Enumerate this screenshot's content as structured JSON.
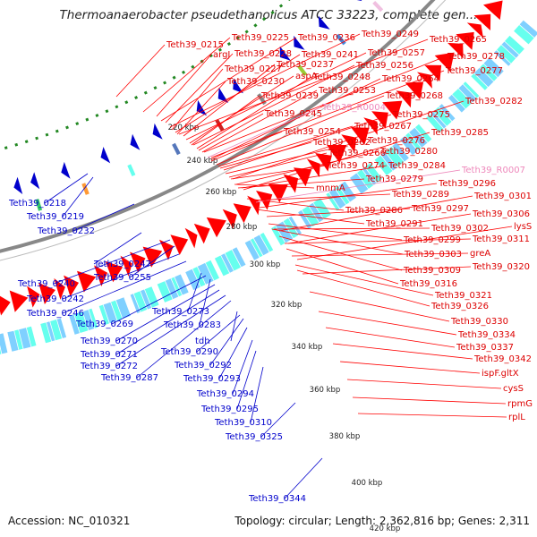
{
  "title": "Thermoanaerobacter pseudethanolicus ATCC 33223, complete gen...",
  "accession": "Accession: NC_010321",
  "summary": "Topology: circular; Length: 2,362,816 bp; Genes: 2,311",
  "colors": {
    "forward": "#ff0000",
    "reverse": "#0000cc",
    "rna": "#ee88bb",
    "tick": "#228822",
    "backbone": "#888888"
  },
  "kbp_ticks": [
    "220 kbp",
    "240 kbp",
    "260 kbp",
    "280 kbp",
    "300 kbp",
    "320 kbp",
    "340 kbp",
    "360 kbp",
    "380 kbp",
    "400 kbp",
    "420 kbp"
  ],
  "reverse_labels": [
    "Teth39_0218",
    "Teth39_0219",
    "Teth39_0232",
    "Teth39_0247",
    "Teth39_0240",
    "Teth39_0255",
    "Teth39_0242",
    "Teth39_0246",
    "Teth39_0273",
    "Teth39_0269",
    "Teth39_0283",
    "Teth39_0270",
    "Teth39_0271",
    "tdh",
    "Teth39_0290",
    "Teth39_0272",
    "Teth39_0292",
    "Teth39_0287",
    "Teth39_0293",
    "Teth39_0294",
    "Teth39_0295",
    "Teth39_0310",
    "Teth39_0325",
    "Teth39_0344"
  ],
  "forward_labels": [
    "Teth39_0215",
    "Teth39_0225",
    "Teth39_0236",
    "Teth39_0249",
    "Teth39_0265",
    "argJ",
    "Teth39_0228",
    "Teth39_0241",
    "Teth39_0257",
    "Teth39_0278",
    "Teth39_0227",
    "Teth39_0237",
    "Teth39_0256",
    "Teth39_0277",
    "Teth39_0230",
    "aspA",
    "Teth39_0248",
    "Teth39_0264",
    "Teth39_0239",
    "Teth39_0253",
    "Teth39_0268",
    "Teth39_0282",
    "Teth39_0245",
    "Teth39_R0004",
    "Teth39_0275",
    "Teth39_0267",
    "Teth39_0254",
    "Teth39_0276",
    "Teth39_0285",
    "Teth39_0262",
    "Teth39_0266",
    "Teth39_0280",
    "Teth39_0274",
    "Teth39_0284",
    "Teth39_R0007",
    "Teth39_0279",
    "Teth39_0296",
    "mnmA",
    "Teth39_0289",
    "Teth39_0301",
    "Teth39_0286",
    "Teth39_0297",
    "Teth39_0306",
    "Teth39_0291",
    "Teth39_0302",
    "lysS",
    "Teth39_0299",
    "Teth39_0311",
    "Teth39_0303",
    "greA",
    "Teth39_0309",
    "Teth39_0320",
    "Teth39_0316",
    "Teth39_0321",
    "Teth39_0326",
    "Teth39_0330",
    "Teth39_0334",
    "Teth39_0337",
    "Teth39_0342",
    "ispF.gltX",
    "cysS",
    "rpmG",
    "rplL"
  ]
}
